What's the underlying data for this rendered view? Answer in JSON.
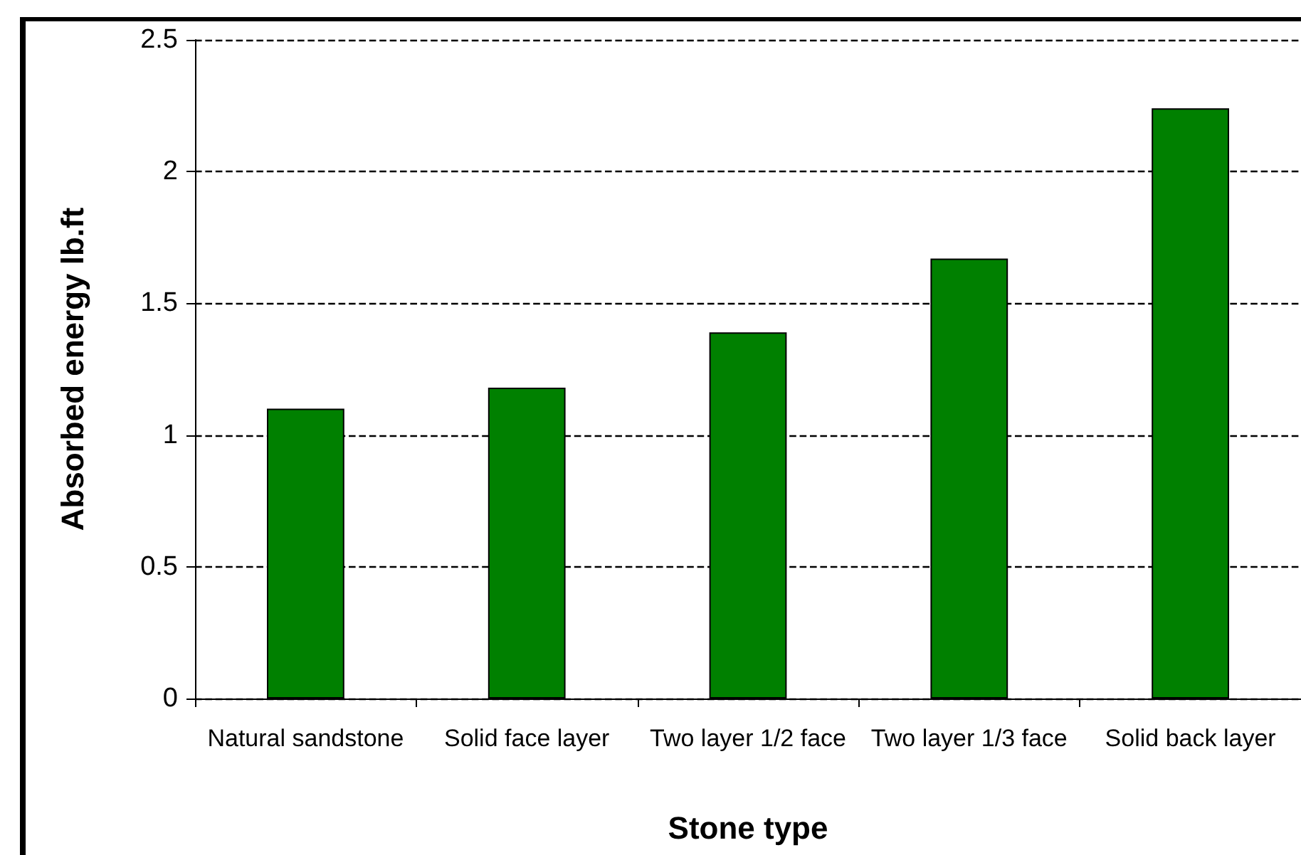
{
  "chart_data": {
    "type": "bar",
    "xlabel": "Stone type",
    "ylabel": "Absorbed energy lb.ft",
    "categories": [
      "Natural sandstone",
      "Solid face layer",
      "Two layer 1/2 face",
      "Two layer 1/3 face",
      "Solid back layer"
    ],
    "values": [
      1.1,
      1.18,
      1.39,
      1.67,
      2.24
    ],
    "color": "#008000",
    "ylim": [
      0,
      2.5
    ],
    "yticks": [
      0,
      0.5,
      1,
      1.5,
      2,
      2.5
    ],
    "grid": "y",
    "line_style": "dashed"
  }
}
